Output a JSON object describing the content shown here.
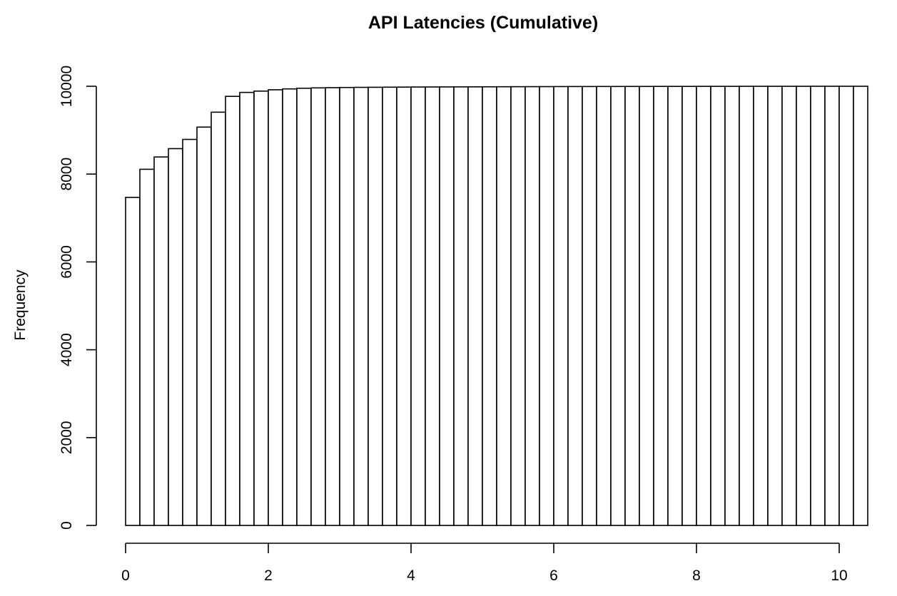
{
  "chart_data": {
    "type": "bar",
    "title": "API Latencies (Cumulative)",
    "xlabel": "",
    "ylabel": "Frequency",
    "bin_width": 0.2,
    "x_start": 0,
    "xlim": [
      0,
      10.4
    ],
    "ylim": [
      0,
      10000
    ],
    "x_ticks": [
      0,
      2,
      4,
      6,
      8,
      10
    ],
    "y_ticks": [
      0,
      2000,
      4000,
      6000,
      8000,
      10000
    ],
    "grid": false,
    "values": [
      7470,
      8110,
      8390,
      8580,
      8790,
      9070,
      9410,
      9770,
      9860,
      9890,
      9920,
      9940,
      9955,
      9963,
      9968,
      9972,
      9975,
      9977,
      9979,
      9981,
      9983,
      9984,
      9985,
      9986,
      9987,
      9988,
      9989,
      9990,
      9991,
      9992,
      9993,
      9994,
      9994,
      9995,
      9995,
      9996,
      9996,
      9997,
      9997,
      9997,
      9998,
      9998,
      9998,
      9999,
      9999,
      9999,
      9999,
      9999,
      10000,
      10000,
      10000,
      10000
    ]
  }
}
